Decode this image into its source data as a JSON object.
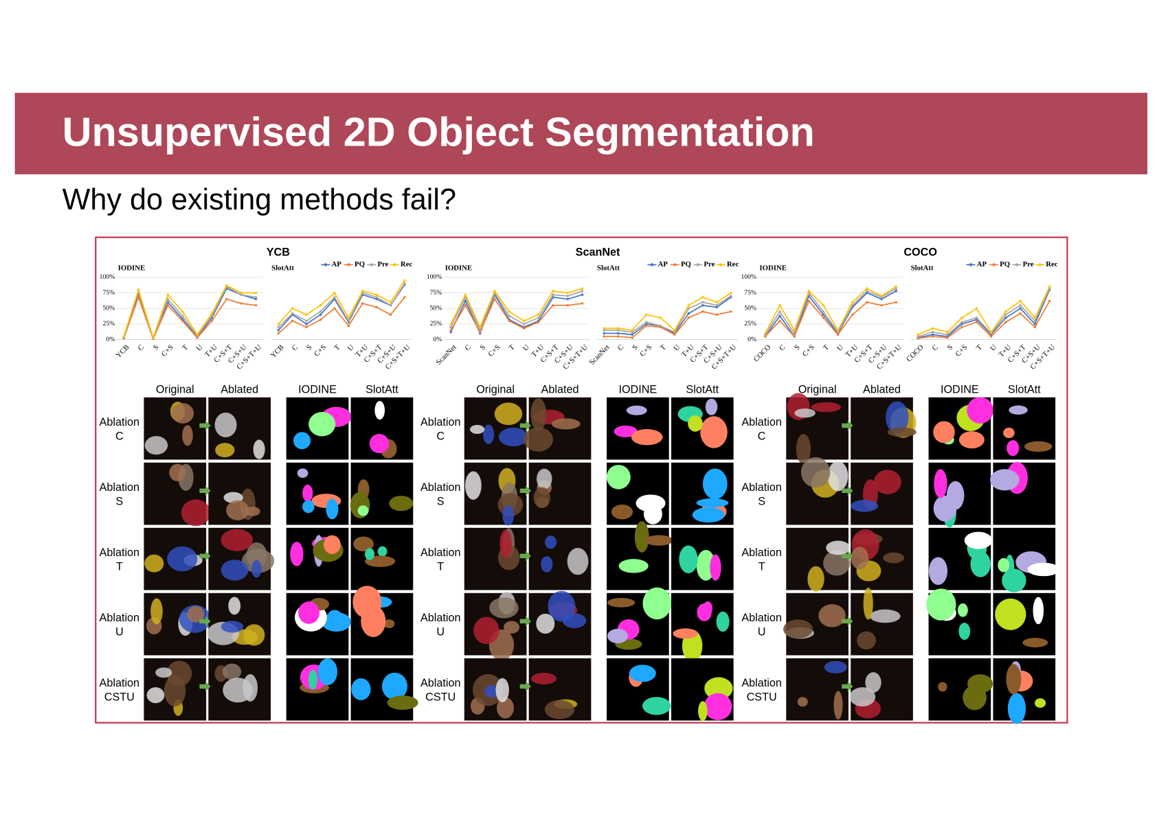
{
  "header": {
    "title": "Unsupervised 2D Object Segmentation"
  },
  "subtitle": "Why do existing methods fail?",
  "groups": [
    {
      "title": "YCB",
      "columns": [
        "Original",
        "Ablated",
        "IODINE",
        "SlotAtt"
      ],
      "rows": [
        [
          "Ablation",
          "C"
        ],
        [
          "Ablation",
          "S"
        ],
        [
          "Ablation",
          "T"
        ],
        [
          "Ablation",
          "U"
        ],
        [
          "Ablation",
          "CSTU"
        ]
      ]
    },
    {
      "title": "ScanNet",
      "columns": [
        "Original",
        "Ablated",
        "IODINE",
        "SlotAtt"
      ],
      "rows": [
        [
          "Ablation",
          "C"
        ],
        [
          "Ablation",
          "S"
        ],
        [
          "Ablation",
          "T"
        ],
        [
          "Ablation",
          "U"
        ],
        [
          "Ablation",
          "CSTU"
        ]
      ]
    },
    {
      "title": "COCO",
      "columns": [
        "Original",
        "Ablated",
        "IODINE",
        "SlotAtt"
      ],
      "rows": [
        [
          "Ablation",
          "C"
        ],
        [
          "Ablation",
          "S"
        ],
        [
          "Ablation",
          "T"
        ],
        [
          "Ablation",
          "U"
        ],
        [
          "Ablation",
          "CSTU"
        ]
      ]
    }
  ],
  "chart_data": [
    {
      "type": "line",
      "title": "IODINE",
      "grid": true,
      "categories": [
        "YCB",
        "C",
        "S",
        "C+S",
        "T",
        "U",
        "T+U",
        "C+S+T",
        "C+S+U",
        "C+S+T+U"
      ],
      "ylim": [
        0,
        100
      ],
      "yticks": [
        {
          "value": 0,
          "label": "0%"
        },
        {
          "value": 25,
          "label": "25%"
        },
        {
          "value": 50,
          "label": "50%"
        },
        {
          "value": 75,
          "label": "75%"
        },
        {
          "value": 100,
          "label": "100%"
        }
      ],
      "series": [
        {
          "color": "#4472c4",
          "values": [
            2,
            75,
            2,
            60,
            33,
            4,
            35,
            82,
            72,
            65
          ]
        },
        {
          "color": "#ed7d31",
          "values": [
            2,
            68,
            1,
            55,
            30,
            3,
            30,
            65,
            58,
            55
          ]
        },
        {
          "color": "#a5a5a5",
          "values": [
            3,
            78,
            2,
            65,
            38,
            6,
            38,
            85,
            72,
            68
          ]
        },
        {
          "color": "#ffc000",
          "values": [
            5,
            80,
            3,
            72,
            45,
            8,
            42,
            87,
            75,
            75
          ]
        }
      ]
    },
    {
      "type": "line",
      "title": "SlotAtt",
      "grid": true,
      "legend": "top-right",
      "categories": [
        "YCB",
        "C",
        "S",
        "C+S",
        "T",
        "U",
        "T+U",
        "C+S+T",
        "C+S+U",
        "C+S+T+U"
      ],
      "ylim": [
        0,
        100
      ],
      "series": [
        {
          "name": "AP",
          "color": "#4472c4",
          "values": [
            15,
            40,
            25,
            40,
            65,
            28,
            72,
            65,
            55,
            88
          ]
        },
        {
          "name": "PQ",
          "color": "#ed7d31",
          "values": [
            10,
            30,
            20,
            32,
            50,
            22,
            58,
            52,
            40,
            68
          ]
        },
        {
          "name": "Pre",
          "color": "#a5a5a5",
          "values": [
            20,
            42,
            30,
            45,
            68,
            30,
            75,
            68,
            55,
            90
          ]
        },
        {
          "name": "Rec",
          "color": "#ffc000",
          "values": [
            25,
            50,
            40,
            55,
            75,
            35,
            78,
            72,
            60,
            95
          ]
        }
      ]
    },
    {
      "type": "line",
      "title": "IODINE",
      "grid": true,
      "categories": [
        "ScanNet",
        "C",
        "S",
        "C+S",
        "T",
        "U",
        "T+U",
        "C+S+T",
        "C+S+U",
        "C+S+T+U"
      ],
      "ylim": [
        0,
        100
      ],
      "yticks": [
        {
          "value": 0,
          "label": "0%"
        },
        {
          "value": 25,
          "label": "25%"
        },
        {
          "value": 50,
          "label": "50%"
        },
        {
          "value": 75,
          "label": "75%"
        },
        {
          "value": 100,
          "label": "100%"
        }
      ],
      "series": [
        {
          "color": "#4472c4",
          "values": [
            12,
            62,
            10,
            72,
            32,
            20,
            30,
            68,
            65,
            72
          ]
        },
        {
          "color": "#ed7d31",
          "values": [
            15,
            55,
            12,
            65,
            30,
            18,
            28,
            55,
            55,
            58
          ]
        },
        {
          "color": "#a5a5a5",
          "values": [
            20,
            68,
            15,
            75,
            38,
            25,
            35,
            72,
            70,
            78
          ]
        },
        {
          "color": "#ffc000",
          "values": [
            25,
            72,
            20,
            78,
            45,
            30,
            40,
            78,
            75,
            82
          ]
        }
      ]
    },
    {
      "type": "line",
      "title": "SlotAtt",
      "grid": true,
      "legend": "top-right",
      "categories": [
        "ScanNet",
        "C",
        "S",
        "C+S",
        "T",
        "U",
        "T+U",
        "C+S+T",
        "C+S+U",
        "C+S+T+U"
      ],
      "ylim": [
        0,
        100
      ],
      "series": [
        {
          "name": "AP",
          "color": "#4472c4",
          "values": [
            10,
            10,
            8,
            25,
            22,
            10,
            42,
            55,
            52,
            68
          ]
        },
        {
          "name": "PQ",
          "color": "#ed7d31",
          "values": [
            5,
            5,
            3,
            22,
            20,
            8,
            35,
            45,
            40,
            45
          ]
        },
        {
          "name": "Pre",
          "color": "#a5a5a5",
          "values": [
            15,
            15,
            12,
            28,
            22,
            12,
            50,
            60,
            55,
            70
          ]
        },
        {
          "name": "Rec",
          "color": "#ffc000",
          "values": [
            18,
            18,
            15,
            40,
            35,
            15,
            55,
            68,
            60,
            75
          ]
        }
      ]
    },
    {
      "type": "line",
      "title": "IODINE",
      "grid": true,
      "categories": [
        "COCO",
        "C",
        "S",
        "C+S",
        "T",
        "U",
        "T+U",
        "C+S+T",
        "C+S+U",
        "C+S+T+U"
      ],
      "ylim": [
        0,
        100
      ],
      "yticks": [
        {
          "value": 0,
          "label": "0%"
        },
        {
          "value": 25,
          "label": "25%"
        },
        {
          "value": 50,
          "label": "50%"
        },
        {
          "value": 75,
          "label": "75%"
        },
        {
          "value": 100,
          "label": "100%"
        }
      ],
      "series": [
        {
          "color": "#4472c4",
          "values": [
            5,
            38,
            5,
            70,
            40,
            10,
            52,
            75,
            65,
            78
          ]
        },
        {
          "color": "#ed7d31",
          "values": [
            5,
            30,
            5,
            62,
            35,
            8,
            40,
            60,
            55,
            60
          ]
        },
        {
          "color": "#a5a5a5",
          "values": [
            8,
            45,
            10,
            75,
            45,
            12,
            55,
            78,
            68,
            82
          ]
        },
        {
          "color": "#ffc000",
          "values": [
            10,
            55,
            15,
            78,
            55,
            15,
            60,
            82,
            70,
            85
          ]
        }
      ]
    },
    {
      "type": "line",
      "title": "SlotAtt",
      "grid": true,
      "legend": "top-right",
      "categories": [
        "COCO",
        "C",
        "S",
        "C+S",
        "T",
        "U",
        "T+U",
        "C+S+T",
        "C+S+U",
        "C+S+T+U"
      ],
      "ylim": [
        0,
        100
      ],
      "series": [
        {
          "name": "AP",
          "color": "#4472c4",
          "values": [
            3,
            8,
            5,
            25,
            32,
            8,
            35,
            50,
            25,
            80
          ]
        },
        {
          "name": "PQ",
          "color": "#ed7d31",
          "values": [
            2,
            5,
            3,
            20,
            28,
            5,
            28,
            42,
            20,
            62
          ]
        },
        {
          "name": "Pre",
          "color": "#a5a5a5",
          "values": [
            5,
            12,
            8,
            28,
            35,
            10,
            40,
            55,
            30,
            82
          ]
        },
        {
          "name": "Rec",
          "color": "#ffc000",
          "values": [
            8,
            18,
            12,
            35,
            50,
            12,
            45,
            62,
            35,
            85
          ]
        }
      ]
    }
  ]
}
